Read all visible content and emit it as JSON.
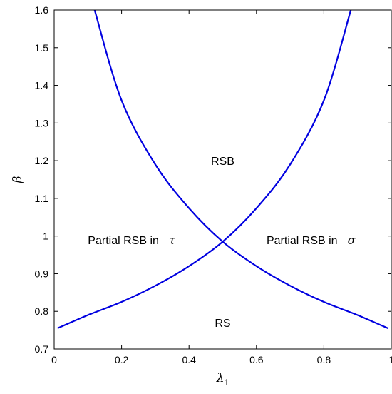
{
  "chart_data": {
    "type": "line",
    "xlabel": "λ",
    "xlabel_sub": "1",
    "ylabel": "β",
    "xlim": [
      0,
      1
    ],
    "ylim": [
      0.7,
      1.6
    ],
    "grid": false,
    "x_ticks": [
      "0",
      "0.2",
      "0.4",
      "0.6",
      "0.8",
      "1"
    ],
    "y_ticks": [
      "0.7",
      "0.8",
      "0.9",
      "1",
      "1.1",
      "1.2",
      "1.3",
      "1.4",
      "1.5",
      "1.6"
    ],
    "line_color": "#0000e0",
    "series": [
      {
        "x": [
          0.01,
          0.1,
          0.2,
          0.3,
          0.4,
          0.5,
          0.6,
          0.7,
          0.8,
          0.88
        ],
        "y": [
          0.755,
          0.79,
          0.825,
          0.868,
          0.92,
          0.985,
          1.074,
          1.19,
          1.36,
          1.6
        ]
      },
      {
        "x": [
          0.12,
          0.2,
          0.3,
          0.4,
          0.5,
          0.6,
          0.7,
          0.8,
          0.9,
          0.99
        ],
        "y": [
          1.6,
          1.36,
          1.19,
          1.074,
          0.985,
          0.92,
          0.868,
          0.825,
          0.79,
          0.755
        ]
      }
    ],
    "annotations": [
      {
        "text": "RSB",
        "x": 0.5,
        "y": 1.2
      },
      {
        "text": "RS",
        "x": 0.5,
        "y": 0.77
      },
      {
        "text": "Partial RSB in",
        "symbol": "τ",
        "x": 0.1,
        "y": 0.99
      },
      {
        "text": "Partial RSB in",
        "symbol": "σ",
        "x": 0.63,
        "y": 0.99
      }
    ]
  }
}
